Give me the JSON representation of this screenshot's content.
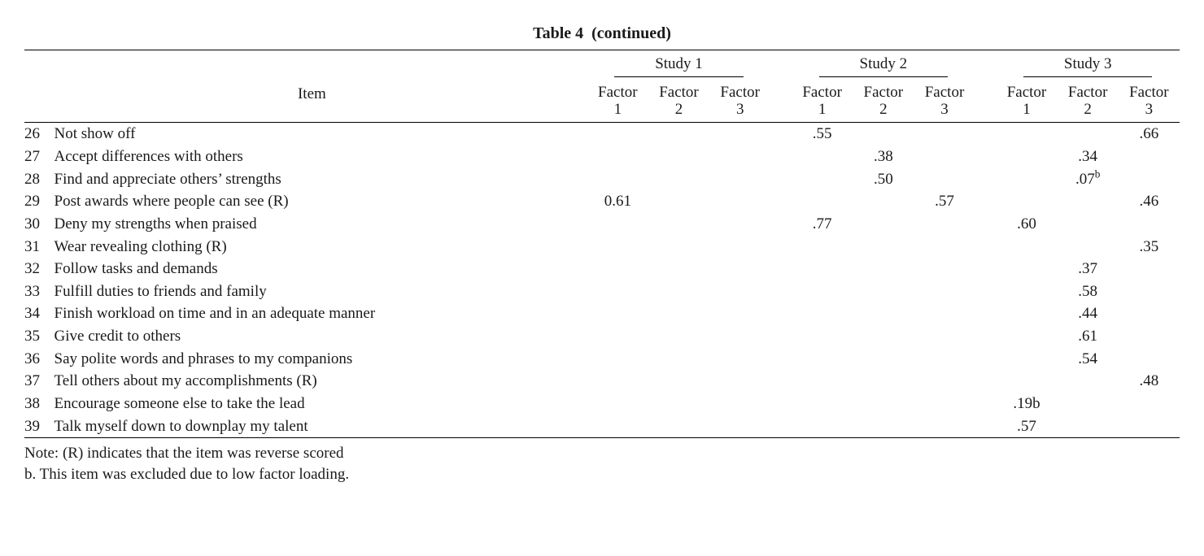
{
  "title_prefix": "Table 4",
  "title_suffix": "(continued)",
  "header": {
    "item_label": "Item",
    "studies": [
      "Study 1",
      "Study 2",
      "Study 3"
    ],
    "factor_word": "Factor",
    "factor_nums": [
      "1",
      "2",
      "3"
    ]
  },
  "rows": [
    {
      "n": "26",
      "item": "Not show off",
      "s1": [
        "",
        "",
        ""
      ],
      "s2": [
        ".55",
        "",
        ""
      ],
      "s3": [
        "",
        "",
        ".66"
      ]
    },
    {
      "n": "27",
      "item": "Accept differences with others",
      "s1": [
        "",
        "",
        ""
      ],
      "s2": [
        "",
        ".38",
        ""
      ],
      "s3": [
        "",
        ".34",
        ""
      ]
    },
    {
      "n": "28",
      "item": "Find and appreciate others’ strengths",
      "s1": [
        "",
        "",
        ""
      ],
      "s2": [
        "",
        ".50",
        ""
      ],
      "s3": [
        "",
        ".07",
        ""
      ],
      "sup": {
        "s3": [
          null,
          "b",
          null
        ]
      }
    },
    {
      "n": "29",
      "item": "Post awards where people can see (R)",
      "s1": [
        "0.61",
        "",
        ""
      ],
      "s2": [
        "",
        "",
        ".57"
      ],
      "s3": [
        "",
        "",
        ".46"
      ]
    },
    {
      "n": "30",
      "item": "Deny my strengths when praised",
      "s1": [
        "",
        "",
        ""
      ],
      "s2": [
        ".77",
        "",
        ""
      ],
      "s3": [
        ".60",
        "",
        ""
      ]
    },
    {
      "n": "31",
      "item": "Wear revealing clothing (R)",
      "s1": [
        "",
        "",
        ""
      ],
      "s2": [
        "",
        "",
        ""
      ],
      "s3": [
        "",
        "",
        ".35"
      ]
    },
    {
      "n": "32",
      "item": "Follow tasks and demands",
      "s1": [
        "",
        "",
        ""
      ],
      "s2": [
        "",
        "",
        ""
      ],
      "s3": [
        "",
        ".37",
        ""
      ]
    },
    {
      "n": "33",
      "item": "Fulfill duties to friends and family",
      "s1": [
        "",
        "",
        ""
      ],
      "s2": [
        "",
        "",
        ""
      ],
      "s3": [
        "",
        ".58",
        ""
      ]
    },
    {
      "n": "34",
      "item": "Finish workload on time and in an adequate manner",
      "s1": [
        "",
        "",
        ""
      ],
      "s2": [
        "",
        "",
        ""
      ],
      "s3": [
        "",
        ".44",
        ""
      ]
    },
    {
      "n": "35",
      "item": "Give credit to others",
      "s1": [
        "",
        "",
        ""
      ],
      "s2": [
        "",
        "",
        ""
      ],
      "s3": [
        "",
        ".61",
        ""
      ]
    },
    {
      "n": "36",
      "item": "Say polite words and phrases to my companions",
      "s1": [
        "",
        "",
        ""
      ],
      "s2": [
        "",
        "",
        ""
      ],
      "s3": [
        "",
        ".54",
        ""
      ]
    },
    {
      "n": "37",
      "item": "Tell others about my accomplishments (R)",
      "s1": [
        "",
        "",
        ""
      ],
      "s2": [
        "",
        "",
        ""
      ],
      "s3": [
        "",
        "",
        ".48"
      ]
    },
    {
      "n": "38",
      "item": "Encourage someone else to take the lead",
      "s1": [
        "",
        "",
        ""
      ],
      "s2": [
        "",
        "",
        ""
      ],
      "s3": [
        ".19b",
        "",
        ""
      ]
    },
    {
      "n": "39",
      "item": "Talk myself down to downplay my talent",
      "s1": [
        "",
        "",
        ""
      ],
      "s2": [
        "",
        "",
        ""
      ],
      "s3": [
        ".57",
        "",
        ""
      ]
    }
  ],
  "notes": [
    "Note: (R) indicates that the item was reverse scored",
    "b. This item was excluded due to low factor loading."
  ]
}
